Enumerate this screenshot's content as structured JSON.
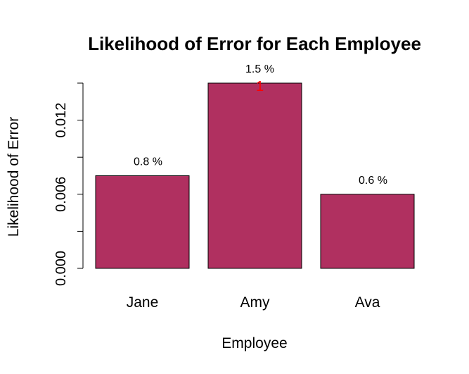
{
  "chart_data": {
    "type": "bar",
    "title": "Likelihood of Error for Each Employee",
    "xlabel": "Employee",
    "ylabel": "Likelihood of Error",
    "categories": [
      "Jane",
      "Amy",
      "Ava"
    ],
    "values": [
      0.0075,
      0.015,
      0.006
    ],
    "data_labels": [
      "0.8 %",
      "1.5 %",
      "0.6 %"
    ],
    "annotations": [
      {
        "category": "Amy",
        "text": "1",
        "color": "#ff0000"
      }
    ],
    "ylim": [
      0,
      0.015
    ],
    "y_ticks": [
      0.0,
      0.003,
      0.006,
      0.009,
      0.012,
      0.015
    ],
    "y_tick_labels": [
      {
        "value": 0.0,
        "label": "0.000"
      },
      {
        "value": 0.006,
        "label": "0.006"
      },
      {
        "value": 0.012,
        "label": "0.012"
      }
    ],
    "bar_color": "#b03060",
    "grid": false,
    "legend": "none"
  }
}
